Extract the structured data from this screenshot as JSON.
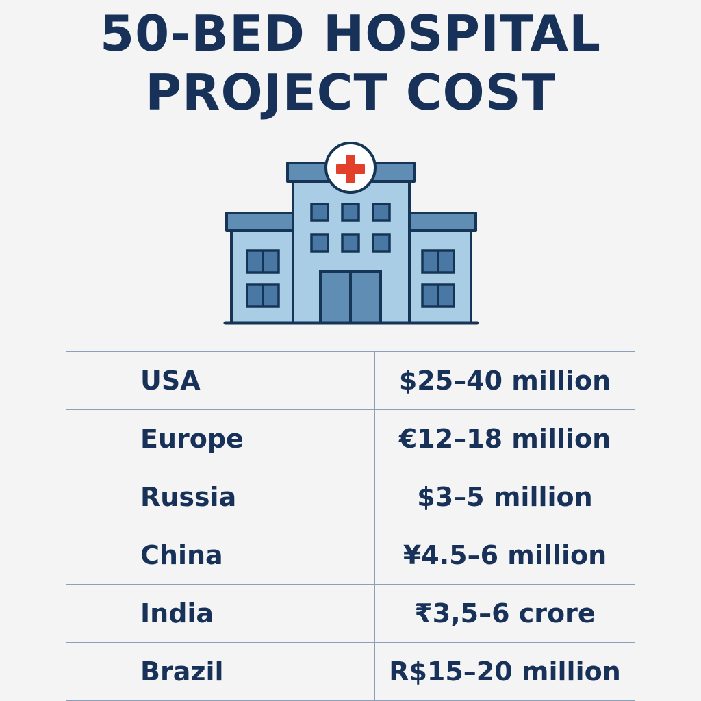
{
  "title": {
    "line1": "50-BED HOSPITAL",
    "line2": "PROJECT COST"
  },
  "illustration": {
    "icon": "hospital-building-icon",
    "colors": {
      "outline": "#163456",
      "wall": "#a9cde5",
      "roof": "#5f8db3",
      "door": "#5f8db3",
      "cross": "#e2402b",
      "window": "#4a78a4"
    }
  },
  "table": {
    "rows": [
      {
        "country": "USA",
        "cost": "$25–40 million"
      },
      {
        "country": "Europe",
        "cost": "€12–18 million"
      },
      {
        "country": "Russia",
        "cost": "$3–5 million"
      },
      {
        "country": "China",
        "cost": "¥4.5–6 million"
      },
      {
        "country": "India",
        "cost": "₹3,5–6 crore"
      },
      {
        "country": "Brazil",
        "cost": "R$15–20 million"
      }
    ]
  }
}
